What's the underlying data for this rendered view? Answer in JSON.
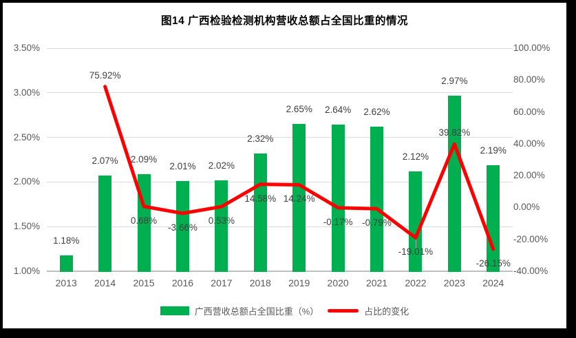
{
  "title": "图14 广西检验检测机构营收总额占全国比重的情况",
  "colors": {
    "bar": "#00B050",
    "line": "#FF0000",
    "grid": "#D9D9D9",
    "axis_line": "#BFBFBF",
    "axis_text": "#595959",
    "data_label": "#404040",
    "leader": "#A6A6A6",
    "frame": "#000000",
    "panel": "#FFFFFF"
  },
  "legend": {
    "items": [
      {
        "label": "广西营收总额占全国比重（%）",
        "marker": "bar"
      },
      {
        "label": "占比的变化",
        "marker": "line"
      }
    ]
  },
  "chart_data": {
    "type": "bar",
    "subtype": "combo bar+line, dual axis",
    "title": "图14 广西检验检测机构营收总额占全国比重的情况",
    "categories": [
      "2013",
      "2014",
      "2015",
      "2016",
      "2017",
      "2018",
      "2019",
      "2020",
      "2021",
      "2022",
      "2023",
      "2024"
    ],
    "series": [
      {
        "name": "广西营收总额占全国比重（%）",
        "type": "bar",
        "axis": "left",
        "color": "#00B050",
        "values": [
          1.18,
          2.07,
          2.09,
          2.01,
          2.02,
          2.32,
          2.65,
          2.64,
          2.62,
          2.12,
          2.97,
          2.19
        ],
        "labels": [
          "1.18%",
          "2.07%",
          "2.09%",
          "2.01%",
          "2.02%",
          "2.32%",
          "2.65%",
          "2.64%",
          "2.62%",
          "2.12%",
          "2.97%",
          "2.19%"
        ]
      },
      {
        "name": "占比的变化",
        "type": "line",
        "axis": "right",
        "color": "#FF0000",
        "values": [
          null,
          75.92,
          0.68,
          -3.66,
          0.53,
          14.58,
          14.24,
          -0.17,
          -0.79,
          -19.01,
          39.82,
          -26.15
        ],
        "labels": [
          null,
          "75.92%",
          "0.68%",
          "-3.66%",
          "0.53%",
          "14.58%",
          "14.24%",
          "-0.17%",
          "-0.79%",
          "-19.01%",
          "39.82%",
          "-26.15%"
        ],
        "label_positions": [
          null,
          "above",
          "below",
          "below",
          "below",
          "below",
          "below",
          "below",
          "below",
          "below",
          "above",
          "below"
        ],
        "leader_line_at": [
          "2022"
        ]
      }
    ],
    "left_axis": {
      "min": 1.0,
      "max": 3.5,
      "step": 0.5,
      "tick_values": [
        3.5,
        3.0,
        2.5,
        2.0,
        1.5,
        1.0
      ],
      "tick_labels": [
        "3.50%",
        "3.00%",
        "2.50%",
        "2.00%",
        "1.50%",
        "1.00%"
      ]
    },
    "right_axis": {
      "min": -40,
      "max": 100,
      "step": 20,
      "tick_values": [
        100,
        80,
        60,
        40,
        20,
        0,
        -20,
        -40
      ],
      "tick_labels": [
        "100.00%",
        "80.00%",
        "60.00%",
        "40.00%",
        "20.00%",
        "0.00%",
        "-20.00%",
        "-40.00%"
      ]
    },
    "grid": true,
    "legend_position": "bottom"
  }
}
